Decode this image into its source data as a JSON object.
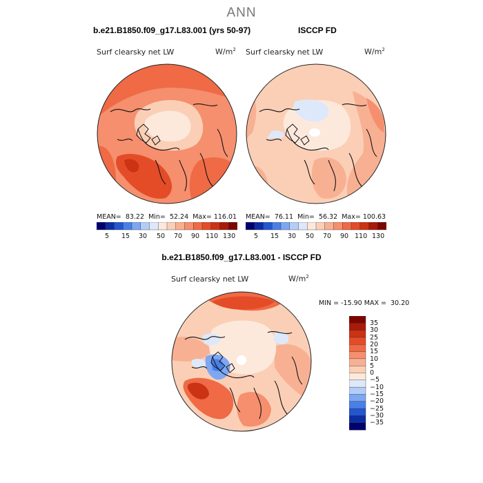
{
  "title": "ANN",
  "panel_left": {
    "case": "b.e21.B1850.f09_g17.L83.001 (yrs 50-97)",
    "variable": "Surf clearsky net LW",
    "units_base": "W/m",
    "units_exp": "2",
    "stats": {
      "mean_label": "MEAN=",
      "mean": "83.22",
      "min_label": "Min=",
      "min": "52.24",
      "max_label": "Max=",
      "max": "116.01"
    }
  },
  "panel_right": {
    "case": "ISCCP FD",
    "variable": "Surf clearsky net LW",
    "units_base": "W/m",
    "units_exp": "2",
    "stats": {
      "mean_label": "MEAN=",
      "mean": "76.11",
      "min_label": "Min=",
      "min": "56.32",
      "max_label": "Max=",
      "max": "100.63"
    }
  },
  "panel_diff": {
    "case": "b.e21.B1850.f09_g17.L83.001 - ISCCP FD",
    "variable": "Surf clearsky net LW",
    "units_base": "W/m",
    "units_exp": "2",
    "minmax": "MIN = -15.90 MAX =  30.20"
  },
  "colorbar_top": {
    "ticks": [
      "5",
      "15",
      "30",
      "50",
      "70",
      "90",
      "110",
      "130"
    ],
    "colors": [
      "#00006e",
      "#0c2ea0",
      "#2456d0",
      "#4a7fe8",
      "#7ea7f2",
      "#b4cdf7",
      "#dde9fb",
      "#fde9dc",
      "#fbcfb6",
      "#f8b093",
      "#f58f6e",
      "#ef6a45",
      "#e44c28",
      "#cc3214",
      "#a81b08",
      "#7d0500"
    ]
  },
  "colorbar_diff": {
    "ticks": [
      "35",
      "30",
      "25",
      "20",
      "15",
      "10",
      "5",
      "0",
      "−5",
      "−10",
      "−15",
      "−20",
      "−25",
      "−30",
      "−35"
    ],
    "colors": [
      "#7d0500",
      "#a81b08",
      "#cc3214",
      "#e44c28",
      "#ef6a45",
      "#f58f6e",
      "#f8b093",
      "#fbcfb6",
      "#fde9dc",
      "#dde9fb",
      "#b4cdf7",
      "#7ea7f2",
      "#4a7fe8",
      "#2456d0",
      "#0c2ea0",
      "#00006e"
    ]
  }
}
